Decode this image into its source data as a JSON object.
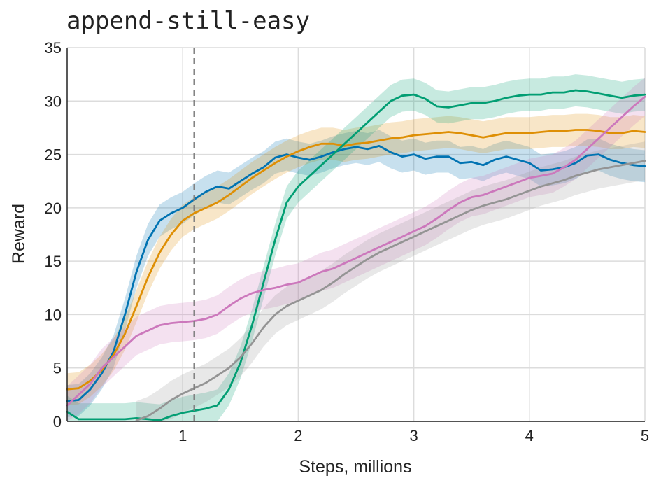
{
  "title": "append-still-easy",
  "chart_data": {
    "type": "line",
    "title": "append-still-easy",
    "xlabel": "Steps, millions",
    "ylabel": "Reward",
    "xlim": [
      0,
      5
    ],
    "ylim": [
      0,
      35
    ],
    "x_ticks": [
      1,
      2,
      3,
      4,
      5
    ],
    "y_ticks": [
      0,
      5,
      10,
      15,
      20,
      25,
      30,
      35
    ],
    "grid": true,
    "legend": "none",
    "vline": {
      "x": 1.1,
      "style": "dashed",
      "color": "#808080"
    },
    "series": [
      {
        "color": "#0173b2",
        "x": [
          0,
          0.1,
          0.2,
          0.3,
          0.4,
          0.5,
          0.6,
          0.7,
          0.8,
          0.9,
          1.0,
          1.1,
          1.2,
          1.3,
          1.4,
          1.5,
          1.6,
          1.7,
          1.8,
          1.9,
          2.0,
          2.1,
          2.2,
          2.3,
          2.4,
          2.5,
          2.6,
          2.7,
          2.8,
          2.9,
          3.0,
          3.1,
          3.2,
          3.3,
          3.4,
          3.5,
          3.6,
          3.7,
          3.8,
          3.9,
          4.0,
          4.1,
          4.2,
          4.3,
          4.4,
          4.5,
          4.6,
          4.7,
          4.8,
          4.9,
          5.0
        ],
        "y": [
          1.9,
          2.0,
          3.0,
          4.5,
          6.5,
          10.0,
          14.0,
          17.0,
          18.8,
          19.5,
          20.0,
          20.8,
          21.5,
          22.0,
          21.8,
          22.5,
          23.2,
          23.8,
          24.7,
          25.0,
          24.7,
          24.5,
          24.8,
          25.2,
          25.5,
          25.7,
          25.5,
          25.8,
          25.2,
          24.8,
          25.0,
          24.6,
          24.8,
          24.8,
          24.2,
          24.3,
          24.0,
          24.5,
          24.8,
          24.5,
          24.2,
          23.5,
          23.6,
          23.8,
          24.2,
          24.9,
          25.0,
          24.5,
          24.2,
          24.0,
          23.9
        ],
        "ci": 1.5
      },
      {
        "color": "#de8f05",
        "x": [
          0,
          0.1,
          0.2,
          0.3,
          0.4,
          0.5,
          0.6,
          0.7,
          0.8,
          0.9,
          1.0,
          1.1,
          1.2,
          1.3,
          1.4,
          1.5,
          1.6,
          1.7,
          1.8,
          1.9,
          2.0,
          2.1,
          2.2,
          2.3,
          2.4,
          2.5,
          2.6,
          2.7,
          2.8,
          2.9,
          3.0,
          3.1,
          3.2,
          3.3,
          3.4,
          3.5,
          3.6,
          3.7,
          3.8,
          3.9,
          4.0,
          4.1,
          4.2,
          4.3,
          4.4,
          4.5,
          4.6,
          4.7,
          4.8,
          4.9,
          5.0
        ],
        "y": [
          3.0,
          3.1,
          3.8,
          4.8,
          6.2,
          8.2,
          10.8,
          13.5,
          15.8,
          17.5,
          18.8,
          19.5,
          20.0,
          20.5,
          21.2,
          22.0,
          22.8,
          23.5,
          24.2,
          24.8,
          25.3,
          25.7,
          26.0,
          26.0,
          25.8,
          26.0,
          26.1,
          26.3,
          26.5,
          26.6,
          26.8,
          26.9,
          27.0,
          27.1,
          27.0,
          26.8,
          26.6,
          26.8,
          27.0,
          27.0,
          27.0,
          27.1,
          27.2,
          27.2,
          27.3,
          27.3,
          27.2,
          27.0,
          27.0,
          27.2,
          27.1
        ],
        "ci": 1.5
      },
      {
        "color": "#029e73",
        "x": [
          0,
          0.1,
          0.2,
          0.3,
          0.4,
          0.5,
          0.6,
          0.7,
          0.8,
          0.9,
          1.0,
          1.1,
          1.2,
          1.3,
          1.4,
          1.5,
          1.6,
          1.7,
          1.8,
          1.9,
          2.0,
          2.1,
          2.2,
          2.3,
          2.4,
          2.5,
          2.6,
          2.7,
          2.8,
          2.9,
          3.0,
          3.1,
          3.2,
          3.3,
          3.4,
          3.5,
          3.6,
          3.7,
          3.8,
          3.9,
          4.0,
          4.1,
          4.2,
          4.3,
          4.4,
          4.5,
          4.6,
          4.7,
          4.8,
          4.9,
          5.0
        ],
        "y": [
          0.9,
          0.2,
          0.2,
          0.2,
          0.2,
          0.2,
          0.3,
          0.2,
          0.1,
          0.5,
          0.8,
          1.0,
          1.2,
          1.5,
          3.0,
          5.5,
          9.0,
          13.0,
          17.0,
          20.5,
          22.0,
          23.0,
          24.0,
          25.0,
          26.0,
          27.0,
          28.0,
          29.0,
          30.0,
          30.5,
          30.6,
          30.2,
          29.5,
          29.4,
          29.6,
          29.8,
          29.8,
          30.0,
          30.3,
          30.5,
          30.6,
          30.6,
          30.8,
          30.8,
          31.0,
          30.9,
          30.7,
          30.5,
          30.3,
          30.5,
          30.6
        ],
        "ci": 1.5
      },
      {
        "color": "#cc78bc",
        "x": [
          0,
          0.1,
          0.2,
          0.3,
          0.4,
          0.5,
          0.6,
          0.7,
          0.8,
          0.9,
          1.0,
          1.1,
          1.2,
          1.3,
          1.4,
          1.5,
          1.6,
          1.7,
          1.8,
          1.9,
          2.0,
          2.1,
          2.2,
          2.3,
          2.4,
          2.5,
          2.6,
          2.7,
          2.8,
          2.9,
          3.0,
          3.1,
          3.2,
          3.3,
          3.4,
          3.5,
          3.6,
          3.7,
          3.8,
          3.9,
          4.0,
          4.1,
          4.2,
          4.3,
          4.4,
          4.5,
          4.6,
          4.7,
          4.8,
          4.9,
          5.0
        ],
        "y": [
          1.5,
          2.5,
          3.5,
          5.0,
          6.0,
          7.0,
          8.0,
          8.5,
          9.0,
          9.2,
          9.3,
          9.4,
          9.6,
          10.0,
          10.8,
          11.5,
          12.0,
          12.3,
          12.5,
          12.8,
          13.0,
          13.5,
          14.0,
          14.3,
          14.8,
          15.3,
          15.8,
          16.3,
          16.8,
          17.3,
          17.8,
          18.3,
          19.0,
          19.8,
          20.5,
          21.0,
          21.2,
          21.6,
          22.0,
          22.4,
          22.8,
          23.0,
          23.2,
          23.8,
          24.5,
          25.5,
          26.5,
          27.5,
          28.5,
          29.5,
          30.4
        ],
        "ci": 1.8
      },
      {
        "color": "#949494",
        "x": [
          0.6,
          0.7,
          0.8,
          0.9,
          1.0,
          1.1,
          1.2,
          1.3,
          1.4,
          1.5,
          1.6,
          1.7,
          1.8,
          1.9,
          2.0,
          2.1,
          2.2,
          2.3,
          2.4,
          2.5,
          2.6,
          2.7,
          2.8,
          2.9,
          3.0,
          3.1,
          3.2,
          3.3,
          3.4,
          3.5,
          3.6,
          3.7,
          3.8,
          3.9,
          4.0,
          4.1,
          4.2,
          4.3,
          4.4,
          4.5,
          4.6,
          4.7,
          4.8,
          4.9,
          5.0
        ],
        "y": [
          0.1,
          0.5,
          1.2,
          2.0,
          2.6,
          3.1,
          3.6,
          4.3,
          5.0,
          6.0,
          7.3,
          8.8,
          10.0,
          10.8,
          11.3,
          11.8,
          12.3,
          13.0,
          13.8,
          14.5,
          15.2,
          15.8,
          16.3,
          16.8,
          17.3,
          17.8,
          18.3,
          18.8,
          19.3,
          19.8,
          20.2,
          20.5,
          20.8,
          21.2,
          21.6,
          22.0,
          22.3,
          22.6,
          23.0,
          23.3,
          23.6,
          23.8,
          24.0,
          24.2,
          24.4
        ],
        "ci": 1.8
      }
    ]
  }
}
